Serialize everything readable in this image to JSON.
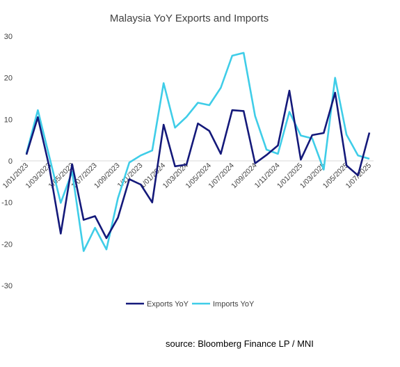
{
  "chart_data": {
    "type": "line",
    "title": "Malaysia YoY Exports and Imports",
    "xlabel": "",
    "ylabel": "",
    "ylim": [
      -30,
      30
    ],
    "yticks": [
      30,
      20,
      10,
      0,
      -10,
      -20,
      -30
    ],
    "grid": false,
    "legend_position": "bottom",
    "x": [
      "1/01/2023",
      "1/02/2023",
      "1/03/2023",
      "1/04/2023",
      "1/05/2023",
      "1/06/2023",
      "1/07/2023",
      "1/08/2023",
      "1/09/2023",
      "1/10/2023",
      "1/11/2023",
      "1/12/2023",
      "1/01/2024",
      "1/02/2024",
      "1/03/2024",
      "1/04/2024",
      "1/05/2024",
      "1/06/2024",
      "1/07/2024",
      "1/08/2024",
      "1/09/2024",
      "1/10/2024",
      "1/11/2024",
      "1/12/2024",
      "1/01/2025",
      "1/02/2025",
      "1/03/2025",
      "1/04/2025",
      "1/05/2025",
      "1/06/2025",
      "1/07/2025"
    ],
    "xtick_labels": [
      "1/01/2023",
      "1/03/2023",
      "1/05/2023",
      "1/07/2023",
      "1/09/2023",
      "1/11/2023",
      "1/01/2024",
      "1/03/2024",
      "1/05/2024",
      "1/07/2024",
      "1/09/2024",
      "1/11/2024",
      "1/01/2025",
      "1/03/2025",
      "1/05/2025",
      "1/07/2025"
    ],
    "series": [
      {
        "name": "Exports YoY",
        "color": "#14197a",
        "values": [
          1.5,
          10.5,
          -1.5,
          -17.5,
          -0.8,
          -14.2,
          -13.3,
          -18.6,
          -13.7,
          -4.4,
          -5.7,
          -10.0,
          8.7,
          -1.3,
          -0.9,
          9.0,
          7.2,
          1.7,
          12.2,
          12.0,
          -0.6,
          1.4,
          3.7,
          16.9,
          0.3,
          6.2,
          6.7,
          16.4,
          -1.1,
          -3.5,
          6.8
        ]
      },
      {
        "name": "Imports YoY",
        "color": "#3fcde8",
        "values": [
          1.8,
          12.2,
          1.0,
          -10.1,
          -2.6,
          -21.7,
          -16.1,
          -21.3,
          -9.0,
          -0.4,
          1.3,
          2.5,
          18.7,
          8.0,
          10.6,
          14.0,
          13.4,
          17.6,
          25.3,
          26.0,
          10.8,
          2.7,
          1.7,
          11.8,
          6.1,
          5.4,
          -2.1,
          20.0,
          6.3,
          1.3,
          0.5
        ]
      }
    ]
  },
  "source_text": "source: Bloomberg Finance LP / MNI"
}
